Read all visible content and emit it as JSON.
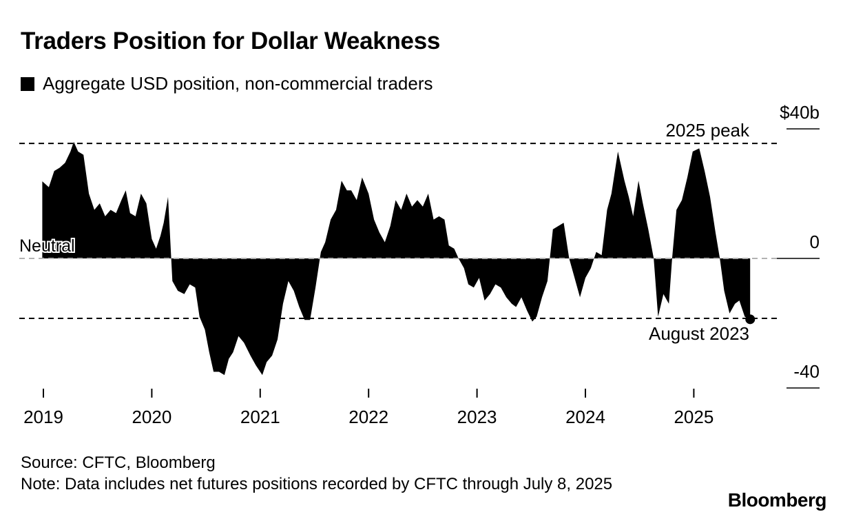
{
  "title": "Traders Position for Dollar Weakness",
  "legend": {
    "label": "Aggregate USD position, non-commercial traders",
    "color": "#000000"
  },
  "chart_data": {
    "type": "area",
    "title": "Traders Position for Dollar Weakness",
    "series": [
      {
        "name": "Aggregate USD position, non-commercial traders"
      }
    ],
    "ylim": [
      -40,
      40
    ],
    "y_ticks": [
      {
        "value": 40,
        "label": "$40b"
      },
      {
        "value": 0,
        "label": "0"
      },
      {
        "value": -40,
        "label": "-40"
      }
    ],
    "x_ticks": [
      {
        "value": 2019,
        "label": "2019"
      },
      {
        "value": 2020,
        "label": "2020"
      },
      {
        "value": 2021,
        "label": "2021"
      },
      {
        "value": 2022,
        "label": "2022"
      },
      {
        "value": 2023,
        "label": "2023"
      },
      {
        "value": 2024,
        "label": "2024"
      },
      {
        "value": 2025,
        "label": "2025"
      }
    ],
    "xlim": [
      2018.78,
      2025.83
    ],
    "reference_lines": [
      {
        "name": "neutral",
        "value": 0,
        "label": "Neutral"
      },
      {
        "name": "peak",
        "value": 35.5,
        "label": "2025 peak"
      },
      {
        "name": "aug2023",
        "value": -18.5,
        "label": "August 2023"
      }
    ],
    "end_point": {
      "x": 2025.52,
      "y": -18.8
    },
    "points": [
      [
        2018.99,
        23.8
      ],
      [
        2019.05,
        22
      ],
      [
        2019.1,
        27
      ],
      [
        2019.15,
        28
      ],
      [
        2019.2,
        29.5
      ],
      [
        2019.25,
        33
      ],
      [
        2019.28,
        36
      ],
      [
        2019.32,
        33
      ],
      [
        2019.37,
        32
      ],
      [
        2019.42,
        20
      ],
      [
        2019.47,
        15
      ],
      [
        2019.52,
        17
      ],
      [
        2019.57,
        13
      ],
      [
        2019.62,
        15
      ],
      [
        2019.67,
        14
      ],
      [
        2019.72,
        18
      ],
      [
        2019.76,
        21
      ],
      [
        2019.8,
        14
      ],
      [
        2019.85,
        13
      ],
      [
        2019.9,
        20
      ],
      [
        2019.95,
        17
      ],
      [
        2020.0,
        6
      ],
      [
        2020.04,
        3
      ],
      [
        2020.08,
        7
      ],
      [
        2020.11,
        11
      ],
      [
        2020.15,
        19
      ],
      [
        2020.19,
        -7
      ],
      [
        2020.24,
        -10
      ],
      [
        2020.3,
        -11
      ],
      [
        2020.35,
        -8
      ],
      [
        2020.4,
        -9
      ],
      [
        2020.44,
        -18
      ],
      [
        2020.49,
        -22
      ],
      [
        2020.53,
        -29
      ],
      [
        2020.57,
        -35
      ],
      [
        2020.62,
        -35
      ],
      [
        2020.67,
        -36
      ],
      [
        2020.71,
        -31
      ],
      [
        2020.75,
        -29
      ],
      [
        2020.8,
        -24
      ],
      [
        2020.85,
        -26
      ],
      [
        2020.91,
        -30
      ],
      [
        2020.96,
        -33
      ],
      [
        2021.02,
        -36
      ],
      [
        2021.06,
        -32
      ],
      [
        2021.11,
        -30
      ],
      [
        2021.16,
        -25
      ],
      [
        2021.21,
        -14
      ],
      [
        2021.26,
        -7
      ],
      [
        2021.31,
        -10
      ],
      [
        2021.36,
        -15
      ],
      [
        2021.41,
        -19
      ],
      [
        2021.46,
        -19
      ],
      [
        2021.51,
        -9
      ],
      [
        2021.56,
        2
      ],
      [
        2021.6,
        5
      ],
      [
        2021.65,
        12
      ],
      [
        2021.7,
        15
      ],
      [
        2021.75,
        24
      ],
      [
        2021.8,
        21
      ],
      [
        2021.84,
        21
      ],
      [
        2021.89,
        18
      ],
      [
        2021.94,
        25
      ],
      [
        2022.0,
        20
      ],
      [
        2022.05,
        12
      ],
      [
        2022.1,
        8
      ],
      [
        2022.15,
        5
      ],
      [
        2022.2,
        10
      ],
      [
        2022.25,
        18
      ],
      [
        2022.3,
        15
      ],
      [
        2022.35,
        20
      ],
      [
        2022.4,
        16
      ],
      [
        2022.45,
        18
      ],
      [
        2022.5,
        16
      ],
      [
        2022.55,
        20
      ],
      [
        2022.6,
        12
      ],
      [
        2022.65,
        13
      ],
      [
        2022.7,
        12
      ],
      [
        2022.74,
        4
      ],
      [
        2022.79,
        3
      ],
      [
        2022.83,
        0
      ],
      [
        2022.88,
        -3
      ],
      [
        2022.92,
        -8
      ],
      [
        2022.97,
        -9
      ],
      [
        2023.02,
        -6
      ],
      [
        2023.07,
        -13
      ],
      [
        2023.12,
        -11
      ],
      [
        2023.17,
        -8
      ],
      [
        2023.22,
        -9
      ],
      [
        2023.27,
        -12
      ],
      [
        2023.32,
        -14
      ],
      [
        2023.36,
        -15
      ],
      [
        2023.41,
        -12
      ],
      [
        2023.46,
        -16
      ],
      [
        2023.51,
        -19.5
      ],
      [
        2023.55,
        -18
      ],
      [
        2023.6,
        -12
      ],
      [
        2023.65,
        -7
      ],
      [
        2023.7,
        9
      ],
      [
        2023.75,
        10
      ],
      [
        2023.8,
        11
      ],
      [
        2023.85,
        0
      ],
      [
        2023.9,
        -6
      ],
      [
        2023.95,
        -12
      ],
      [
        2024.0,
        -6
      ],
      [
        2024.05,
        -3
      ],
      [
        2024.1,
        2
      ],
      [
        2024.15,
        1
      ],
      [
        2024.2,
        15
      ],
      [
        2024.24,
        20
      ],
      [
        2024.3,
        33
      ],
      [
        2024.36,
        24
      ],
      [
        2024.4,
        19
      ],
      [
        2024.44,
        13
      ],
      [
        2024.49,
        24
      ],
      [
        2024.53,
        17
      ],
      [
        2024.58,
        9
      ],
      [
        2024.63,
        0
      ],
      [
        2024.67,
        -18
      ],
      [
        2024.72,
        -11
      ],
      [
        2024.77,
        -14
      ],
      [
        2024.8,
        0
      ],
      [
        2024.84,
        15
      ],
      [
        2024.89,
        18
      ],
      [
        2024.94,
        25
      ],
      [
        2024.99,
        33
      ],
      [
        2025.05,
        34
      ],
      [
        2025.1,
        27
      ],
      [
        2025.15,
        19
      ],
      [
        2025.2,
        8
      ],
      [
        2025.24,
        0
      ],
      [
        2025.28,
        -10
      ],
      [
        2025.33,
        -17
      ],
      [
        2025.38,
        -14
      ],
      [
        2025.42,
        -13
      ],
      [
        2025.47,
        -18
      ],
      [
        2025.52,
        -18.8
      ]
    ]
  },
  "footer": {
    "source": "Source: CFTC, Bloomberg",
    "note": "Note: Data includes net futures positions recorded by CFTC through July 8, 2025"
  },
  "brand": "Bloomberg"
}
